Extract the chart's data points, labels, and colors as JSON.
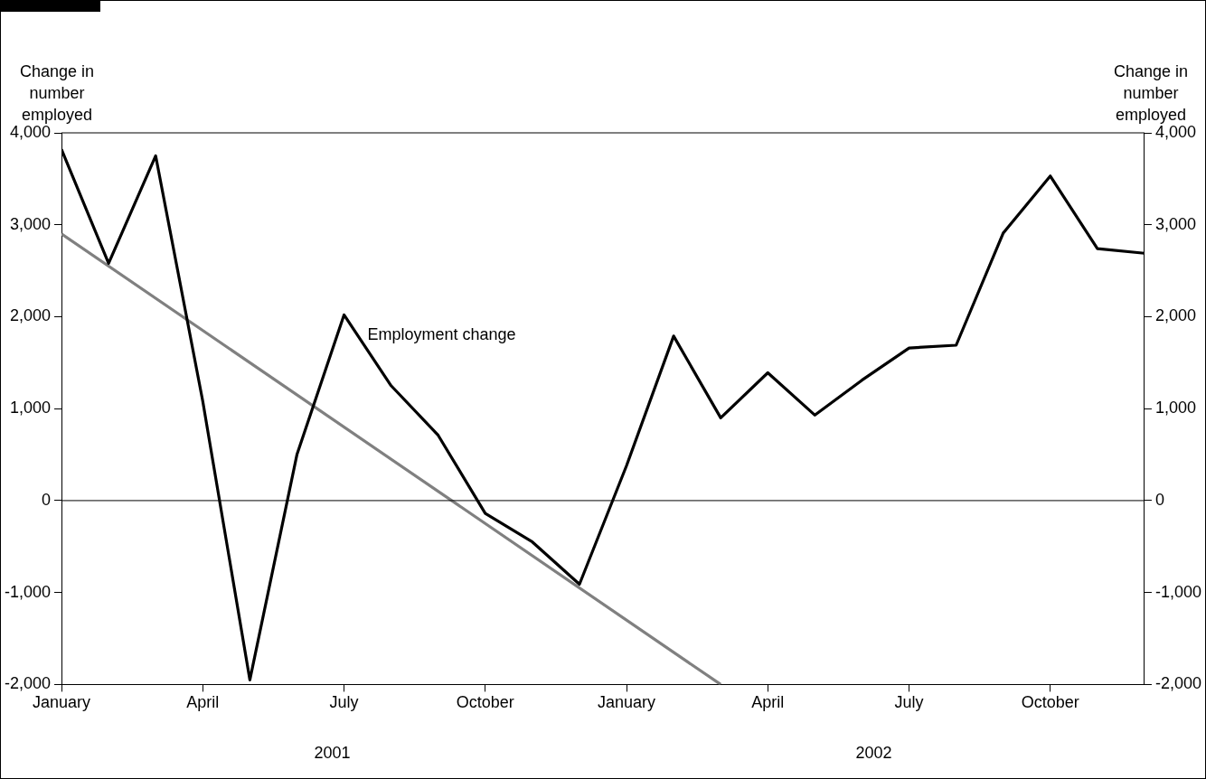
{
  "chart_data": {
    "type": "line",
    "ylabel": "Change in\nnumber\nemployed",
    "y2label": "Change in\nnumber\nemployed",
    "x": [
      "2001-01",
      "2001-02",
      "2001-03",
      "2001-04",
      "2001-05",
      "2001-06",
      "2001-07",
      "2001-08",
      "2001-09",
      "2001-10",
      "2001-11",
      "2001-12",
      "2002-01",
      "2002-02",
      "2002-03",
      "2002-04",
      "2002-05",
      "2002-06",
      "2002-07",
      "2002-08",
      "2002-09",
      "2002-10",
      "2002-11",
      "2002-12"
    ],
    "series": [
      {
        "color": "#000000",
        "values": [
          3820,
          2580,
          3750,
          1080,
          -1950,
          500,
          2020,
          1250,
          710,
          -140,
          -450,
          -910,
          380,
          1790,
          900,
          1390,
          930,
          1310,
          1660,
          1690,
          2910,
          3530,
          2740,
          2690
        ]
      },
      {
        "type": "line",
        "color": "#808080",
        "x": [
          "2001-01",
          "2002-03"
        ],
        "values": [
          2900,
          -2000
        ]
      }
    ],
    "xlim": [
      "2001-01",
      "2002-12"
    ],
    "xticks": [
      {
        "value": "2001-01",
        "label": "January"
      },
      {
        "value": "2001-04",
        "label": "April"
      },
      {
        "value": "2001-07",
        "label": "July"
      },
      {
        "value": "2001-10",
        "label": "October"
      },
      {
        "value": "2002-01",
        "label": "January"
      },
      {
        "value": "2002-04",
        "label": "April"
      },
      {
        "value": "2002-07",
        "label": "July"
      },
      {
        "value": "2002-10",
        "label": "October"
      }
    ],
    "ylim": [
      -2000,
      4000
    ],
    "yticks": [
      {
        "value": -2000,
        "label": "-2,000"
      },
      {
        "value": -1000,
        "label": "-1,000"
      },
      0,
      {
        "value": 1000,
        "label": "1,000"
      },
      {
        "value": 2000,
        "label": "2,000"
      },
      {
        "value": 3000,
        "label": "3,000"
      },
      {
        "value": 4000,
        "label": "4,000"
      }
    ],
    "y2lim": [
      -2000,
      4000
    ],
    "y2ticks": [
      {
        "value": -2000,
        "label": "-2,000"
      },
      {
        "value": -1000,
        "label": "-1,000"
      },
      0,
      {
        "value": 1000,
        "label": "1,000"
      },
      {
        "value": 2000,
        "label": "2,000"
      },
      {
        "value": 3000,
        "label": "3,000"
      },
      {
        "value": 4000,
        "label": "4,000"
      }
    ],
    "ref_lines": [
      {
        "axis": "y",
        "value": 0,
        "color": "#000000"
      }
    ],
    "annotations": [
      {
        "text": "Employment change",
        "x": "2001-07",
        "y": 1800
      },
      "2001",
      "2002"
    ],
    "legend": false,
    "marker": "none",
    "line_style": "solid"
  }
}
